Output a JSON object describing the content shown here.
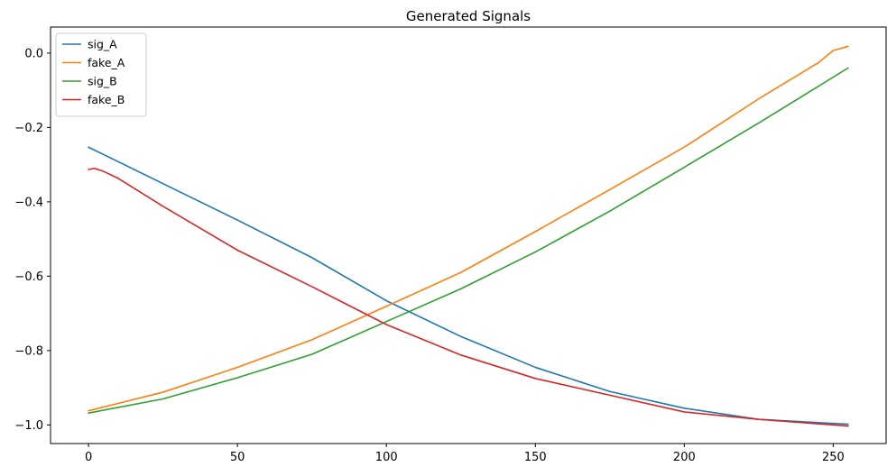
{
  "chart_data": {
    "type": "line",
    "title": "Generated Signals",
    "xlabel": "",
    "ylabel": "",
    "xlim": [
      -12.75,
      267.75
    ],
    "ylim": [
      -1.05,
      0.07
    ],
    "x_ticks": [
      0,
      50,
      100,
      150,
      200,
      250
    ],
    "y_ticks": [
      0.0,
      -0.2,
      -0.4,
      -0.6,
      -0.8,
      -1.0
    ],
    "y_tick_labels": [
      "0.0",
      "−0.2",
      "−0.4",
      "−0.6",
      "−0.8",
      "−1.0"
    ],
    "grid": false,
    "legend": "top-left",
    "series": [
      {
        "name": "sig_A",
        "color": "#1f77b4",
        "x": [
          0,
          25,
          50,
          75,
          100,
          125,
          150,
          175,
          200,
          225,
          255
        ],
        "y": [
          -0.253,
          -0.351,
          -0.449,
          -0.55,
          -0.666,
          -0.762,
          -0.845,
          -0.91,
          -0.955,
          -0.985,
          -0.998
        ]
      },
      {
        "name": "fake_A",
        "color": "#ff7f0e",
        "x": [
          0,
          25,
          50,
          75,
          100,
          125,
          150,
          175,
          200,
          225,
          245,
          250,
          255
        ],
        "y": [
          -0.962,
          -0.912,
          -0.845,
          -0.771,
          -0.681,
          -0.59,
          -0.48,
          -0.367,
          -0.253,
          -0.123,
          -0.026,
          0.007,
          0.018
        ]
      },
      {
        "name": "sig_B",
        "color": "#2ca02c",
        "x": [
          0,
          25,
          50,
          75,
          100,
          125,
          150,
          175,
          200,
          225,
          255
        ],
        "y": [
          -0.968,
          -0.93,
          -0.873,
          -0.81,
          -0.722,
          -0.634,
          -0.535,
          -0.425,
          -0.307,
          -0.188,
          -0.04
        ]
      },
      {
        "name": "fake_B",
        "color": "#d62728",
        "x": [
          0,
          2,
          5,
          10,
          25,
          50,
          75,
          100,
          125,
          150,
          175,
          200,
          225,
          255
        ],
        "y": [
          -0.313,
          -0.31,
          -0.318,
          -0.337,
          -0.412,
          -0.53,
          -0.628,
          -0.73,
          -0.812,
          -0.875,
          -0.92,
          -0.965,
          -0.985,
          -1.003
        ]
      }
    ]
  }
}
